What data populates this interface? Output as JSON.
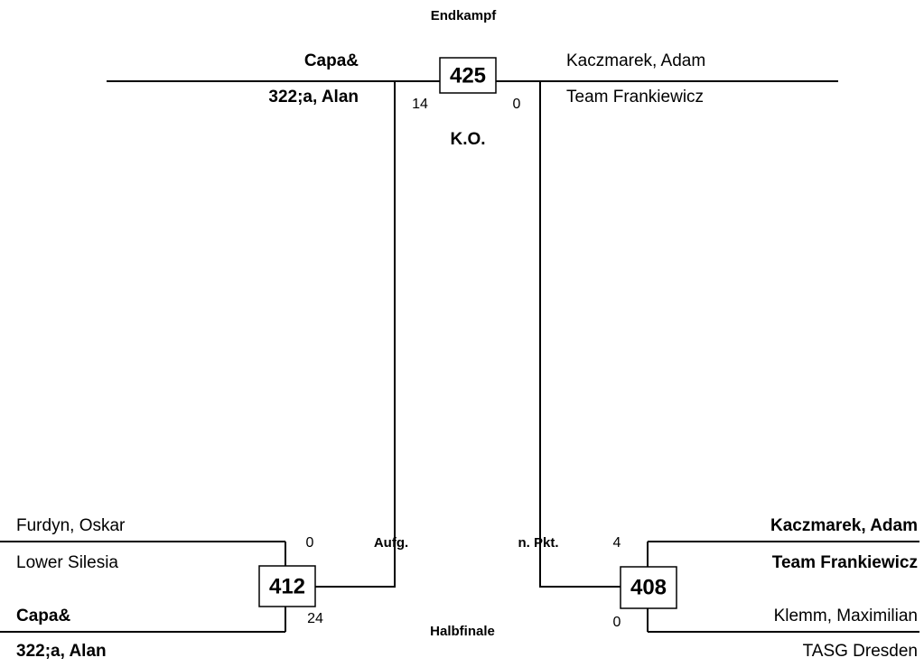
{
  "final": {
    "label": "Endkampf",
    "match": 425,
    "result": "K.O.",
    "left": {
      "name": "Capa&",
      "team": "322;a, Alan",
      "score": 14
    },
    "right": {
      "name": "Kaczmarek, Adam",
      "team": "Team Frankiewicz",
      "score": 0
    }
  },
  "semifinal": {
    "label": "Halbfinale",
    "matches": [
      {
        "match": 412,
        "result": "Aufg.",
        "top": {
          "name": "Furdyn, Oskar",
          "team": "Lower Silesia",
          "score": 0
        },
        "bottom": {
          "name": "Capa&",
          "team": "322;a, Alan",
          "score": 24
        }
      },
      {
        "match": 408,
        "result": "n. Pkt.",
        "top": {
          "name": "Kaczmarek, Adam",
          "team": "Team Frankiewicz",
          "score": 4
        },
        "bottom": {
          "name": "Klemm, Maximilian",
          "team": "TASG Dresden",
          "score": 0
        }
      }
    ]
  }
}
